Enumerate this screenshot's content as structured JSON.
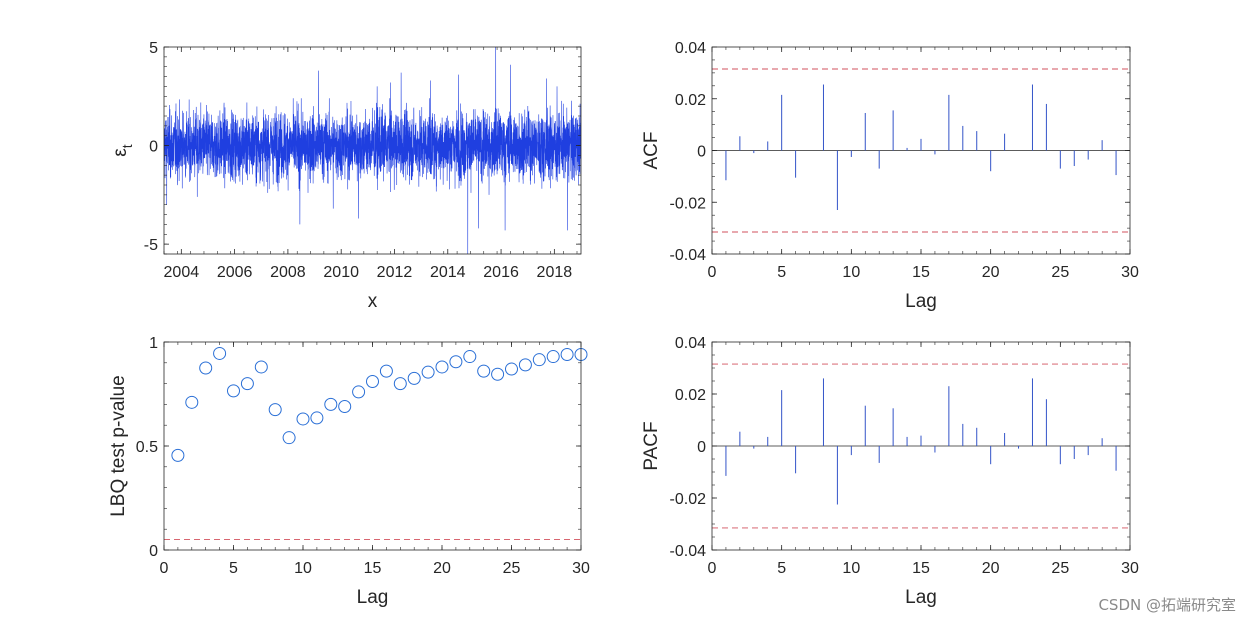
{
  "watermark": "CSDN @拓端研究室",
  "colors": {
    "series": "#1f3fe0",
    "acf_bar": "#3354c8",
    "marker": "#2a6fd6",
    "bound": "#d2505c",
    "axis": "#262626"
  },
  "chart_data": [
    {
      "type": "line",
      "id": "residuals",
      "title": "",
      "ylabel": "ε t",
      "ylabel_main": "ε",
      "ylabel_sub": "t",
      "xlabel": "x",
      "xlim": [
        2003.35,
        2019.0
      ],
      "ylim": [
        -5.5,
        5
      ],
      "xticks": [
        2004,
        2006,
        2008,
        2010,
        2012,
        2014,
        2016,
        2018
      ],
      "xticklabels": [
        "2004",
        "2006",
        "2008",
        "2010",
        "2012",
        "2014",
        "2016",
        "2018"
      ],
      "yticks": [
        -5,
        0,
        5
      ],
      "yticklabels": [
        "-5",
        "0",
        "5"
      ],
      "series_description": "daily standardized residuals, dense band roughly between -2 and 2",
      "n_points": 4000,
      "spikes": [
        [
          2003.45,
          -3.0
        ],
        [
          2004.6,
          -2.6
        ],
        [
          2007.3,
          -2.2
        ],
        [
          2008.45,
          -4.0
        ],
        [
          2009.15,
          3.8
        ],
        [
          2009.7,
          -3.2
        ],
        [
          2010.65,
          -3.7
        ],
        [
          2011.35,
          3.0
        ],
        [
          2011.85,
          3.2
        ],
        [
          2012.25,
          3.7
        ],
        [
          2013.35,
          3.3
        ],
        [
          2014.4,
          3.6
        ],
        [
          2014.75,
          -5.5
        ],
        [
          2015.15,
          -4.2
        ],
        [
          2015.55,
          -2.5
        ],
        [
          2015.8,
          5.0
        ],
        [
          2016.15,
          -4.3
        ],
        [
          2016.35,
          4.1
        ],
        [
          2017.7,
          3.4
        ],
        [
          2018.1,
          3.0
        ],
        [
          2018.5,
          -4.3
        ]
      ],
      "grid": false
    },
    {
      "type": "stem",
      "id": "acf",
      "title": "",
      "xlabel": "Lag",
      "ylabel": "ACF",
      "xlim": [
        0,
        30
      ],
      "ylim": [
        -0.04,
        0.04
      ],
      "xticks": [
        0,
        5,
        10,
        15,
        20,
        25,
        30
      ],
      "xticklabels": [
        "0",
        "5",
        "10",
        "15",
        "20",
        "25",
        "30"
      ],
      "yticks": [
        -0.04,
        -0.02,
        0,
        0.02,
        0.04
      ],
      "yticklabels": [
        "-0.04",
        "-0.02",
        "0",
        "0.02",
        "0.04"
      ],
      "lags": [
        1,
        2,
        3,
        4,
        5,
        6,
        7,
        8,
        9,
        10,
        11,
        12,
        13,
        14,
        15,
        16,
        17,
        18,
        19,
        20,
        21,
        22,
        23,
        24,
        25,
        26,
        27,
        28,
        29
      ],
      "values": [
        -0.0115,
        0.0055,
        -0.001,
        0.0035,
        0.0215,
        -0.0105,
        0.0,
        0.0255,
        -0.023,
        -0.0025,
        0.0145,
        -0.007,
        0.0155,
        0.001,
        0.0045,
        -0.0015,
        0.0215,
        0.0095,
        0.0075,
        -0.008,
        0.0065,
        0.0,
        0.0255,
        0.018,
        -0.007,
        -0.006,
        -0.0035,
        0.004,
        -0.0095
      ],
      "bounds": [
        0.0315,
        -0.0315
      ],
      "grid": false
    },
    {
      "type": "scatter",
      "id": "lbq",
      "title": "",
      "xlabel": "Lag",
      "ylabel": "LBQ test p-value",
      "xlim": [
        0,
        30
      ],
      "ylim": [
        0,
        1
      ],
      "xticks": [
        0,
        5,
        10,
        15,
        20,
        25,
        30
      ],
      "xticklabels": [
        "0",
        "5",
        "10",
        "15",
        "20",
        "25",
        "30"
      ],
      "yticks": [
        0,
        0.5,
        1
      ],
      "yticklabels": [
        "0",
        "0.5",
        "1"
      ],
      "x": [
        1,
        2,
        3,
        4,
        5,
        6,
        7,
        8,
        9,
        10,
        11,
        12,
        13,
        14,
        15,
        16,
        17,
        18,
        19,
        20,
        21,
        22,
        23,
        24,
        25,
        26,
        27,
        28,
        29,
        30
      ],
      "y": [
        0.455,
        0.71,
        0.875,
        0.945,
        0.765,
        0.8,
        0.88,
        0.675,
        0.54,
        0.63,
        0.635,
        0.7,
        0.69,
        0.76,
        0.81,
        0.86,
        0.8,
        0.825,
        0.855,
        0.88,
        0.905,
        0.93,
        0.86,
        0.845,
        0.87,
        0.89,
        0.915,
        0.93,
        0.94,
        0.94
      ],
      "threshold": 0.05,
      "grid": false
    },
    {
      "type": "stem",
      "id": "pacf",
      "title": "",
      "xlabel": "Lag",
      "ylabel": "PACF",
      "xlim": [
        0,
        30
      ],
      "ylim": [
        -0.04,
        0.04
      ],
      "xticks": [
        0,
        5,
        10,
        15,
        20,
        25,
        30
      ],
      "xticklabels": [
        "0",
        "5",
        "10",
        "15",
        "20",
        "25",
        "30"
      ],
      "yticks": [
        -0.04,
        -0.02,
        0,
        0.02,
        0.04
      ],
      "yticklabels": [
        "-0.04",
        "-0.02",
        "0",
        "0.02",
        "0.04"
      ],
      "lags": [
        1,
        2,
        3,
        4,
        5,
        6,
        7,
        8,
        9,
        10,
        11,
        12,
        13,
        14,
        15,
        16,
        17,
        18,
        19,
        20,
        21,
        22,
        23,
        24,
        25,
        26,
        27,
        28,
        29
      ],
      "values": [
        -0.0115,
        0.0055,
        -0.001,
        0.0035,
        0.0215,
        -0.0105,
        0.0,
        0.026,
        -0.0225,
        -0.0035,
        0.0155,
        -0.0065,
        0.0145,
        0.0035,
        0.004,
        -0.0025,
        0.023,
        0.0085,
        0.007,
        -0.007,
        0.005,
        -0.001,
        0.026,
        0.018,
        -0.007,
        -0.005,
        -0.0035,
        0.003,
        -0.0095
      ],
      "bounds": [
        0.0315,
        -0.0315
      ],
      "grid": false
    }
  ]
}
